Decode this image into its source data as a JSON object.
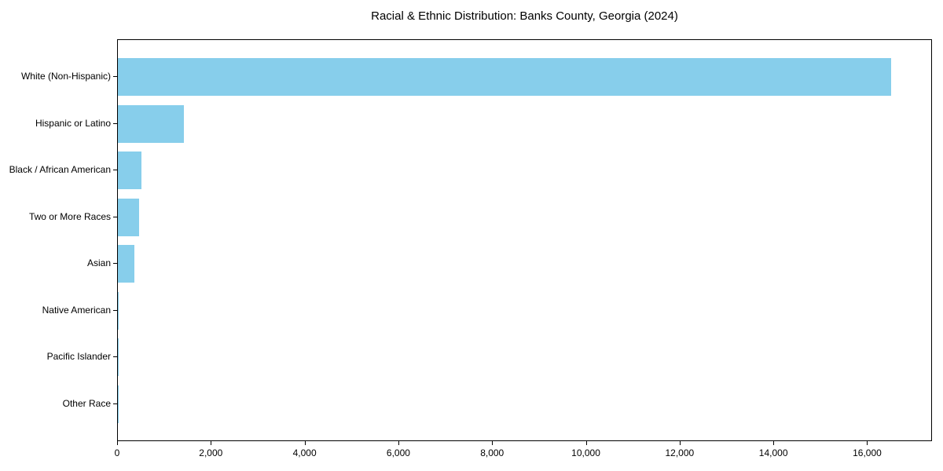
{
  "chart_data": {
    "type": "bar",
    "orientation": "horizontal",
    "title": "Racial & Ethnic Distribution: Banks County, Georgia (2024)",
    "categories": [
      "White (Non-Hispanic)",
      "Hispanic or Latino",
      "Black / African American",
      "Two or More Races",
      "Asian",
      "Native American",
      "Pacific Islander",
      "Other Race"
    ],
    "values": [
      16500,
      1400,
      510,
      450,
      350,
      25,
      5,
      5
    ],
    "xlabel": "",
    "ylabel": "",
    "xlim": [
      0,
      17350
    ],
    "xticks": [
      0,
      2000,
      4000,
      6000,
      8000,
      10000,
      12000,
      14000,
      16000
    ],
    "xtick_labels": [
      "0",
      "2,000",
      "4,000",
      "6,000",
      "8,000",
      "10,000",
      "12,000",
      "14,000",
      "16,000"
    ],
    "bar_color": "#87CEEB",
    "frame_color": "#000000",
    "background_color": "#ffffff",
    "grid": false,
    "legend": null
  }
}
